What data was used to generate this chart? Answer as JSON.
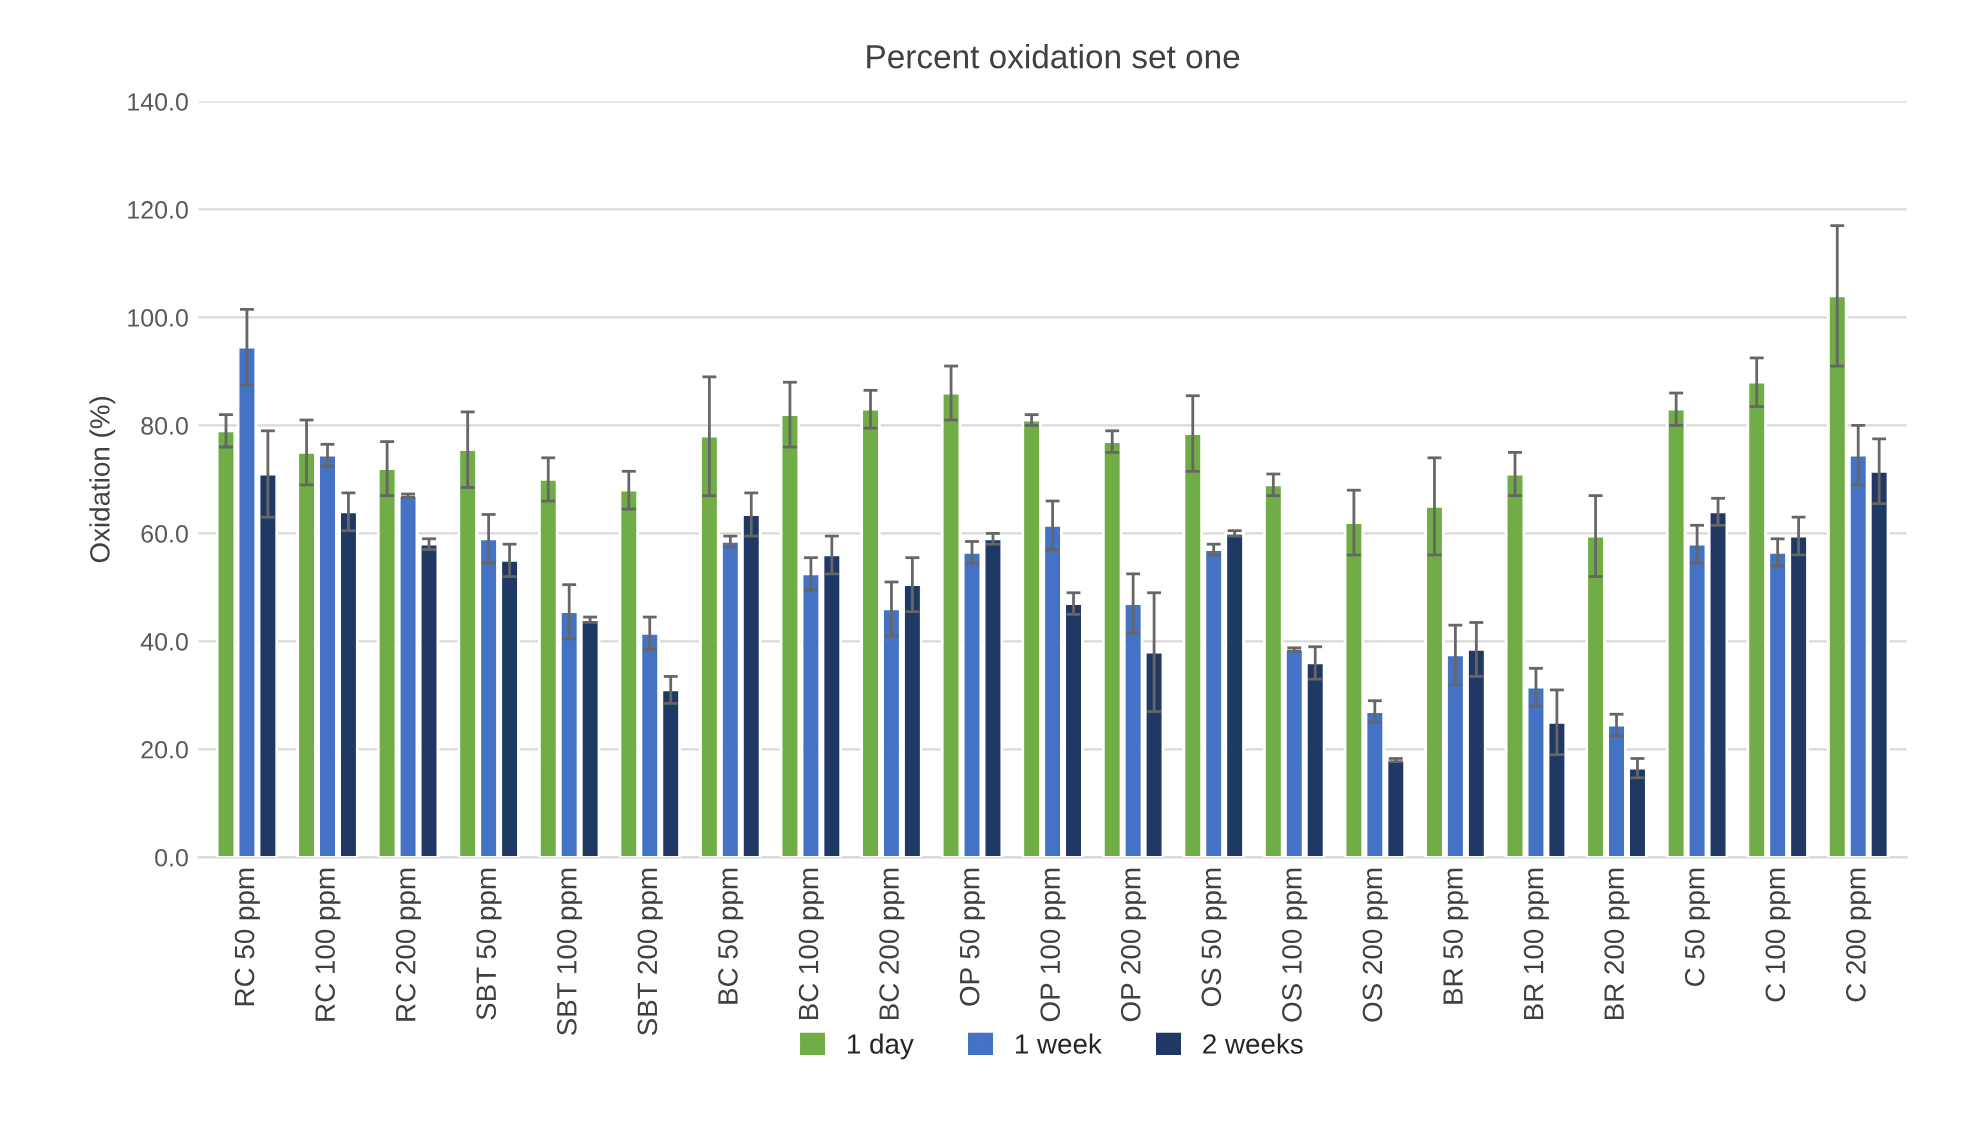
{
  "chart_data": {
    "type": "bar",
    "title": "Percent oxidation set one",
    "ylabel": "Oxidation (%)",
    "categories": [
      "RC 50 ppm",
      "RC 100 ppm",
      "RC 200 ppm",
      "SBT 50 ppm",
      "SBT 100 ppm",
      "SBT 200 ppm",
      "BC 50 ppm",
      "BC 100 ppm",
      "BC 200 ppm",
      "OP 50 ppm",
      "OP 100 ppm",
      "OP 200 ppm",
      "OS 50 ppm",
      "OS 100 ppm",
      "OS 200 ppm",
      "BR 50 ppm",
      "BR 100 ppm",
      "BR 200 ppm",
      "C 50 ppm",
      "C 100 ppm",
      "C 200 ppm"
    ],
    "series": [
      {
        "name": "1 day",
        "color": "#70ad47",
        "values": [
          79,
          75,
          72,
          75.5,
          70,
          68,
          78,
          82,
          83,
          86,
          81,
          77,
          78.5,
          69,
          62,
          65,
          71,
          59.5,
          83,
          88,
          104
        ],
        "errors": [
          3,
          6,
          5,
          7,
          4,
          3.5,
          11,
          6,
          3.5,
          5,
          1,
          2,
          7,
          2,
          6,
          9,
          4,
          7.5,
          3,
          4.5,
          13
        ]
      },
      {
        "name": "1 week",
        "color": "#4472c4",
        "values": [
          94.5,
          74.5,
          67,
          59,
          45.5,
          41.5,
          58.5,
          52.5,
          46,
          56.5,
          61.5,
          47,
          57,
          38.5,
          27,
          37.5,
          31.5,
          24.5,
          58,
          56.5,
          74.5
        ],
        "errors": [
          7,
          2,
          0.3,
          4.5,
          5,
          3,
          1,
          3,
          5,
          2,
          4.5,
          5.5,
          1,
          0.3,
          2,
          5.5,
          3.5,
          2,
          3.5,
          2.5,
          5.5
        ]
      },
      {
        "name": "2 weeks",
        "color": "#203864",
        "values": [
          71,
          64,
          58,
          55,
          44,
          31,
          63.5,
          56,
          50.5,
          59,
          47,
          38,
          60,
          36,
          18,
          38.5,
          25,
          16.5,
          64,
          59.5,
          71.5
        ],
        "errors": [
          8,
          3.5,
          1,
          3,
          0.5,
          2.5,
          4,
          3.5,
          5,
          1,
          2,
          11,
          0.5,
          3,
          0.3,
          5,
          6,
          1.8,
          2.5,
          3.5,
          6
        ]
      }
    ],
    "ylim": [
      0,
      140
    ],
    "yticks": [
      {
        "value": 0,
        "label": "0.0"
      },
      {
        "value": 20,
        "label": "20.0"
      },
      {
        "value": 40,
        "label": "40.0"
      },
      {
        "value": 60,
        "label": "60.0"
      },
      {
        "value": 80,
        "label": "80.0"
      },
      {
        "value": 100,
        "label": "100.0"
      },
      {
        "value": 120,
        "label": "120.0"
      },
      {
        "value": 140,
        "label": "140.0"
      }
    ],
    "grid": "y",
    "legend": "bottom"
  }
}
